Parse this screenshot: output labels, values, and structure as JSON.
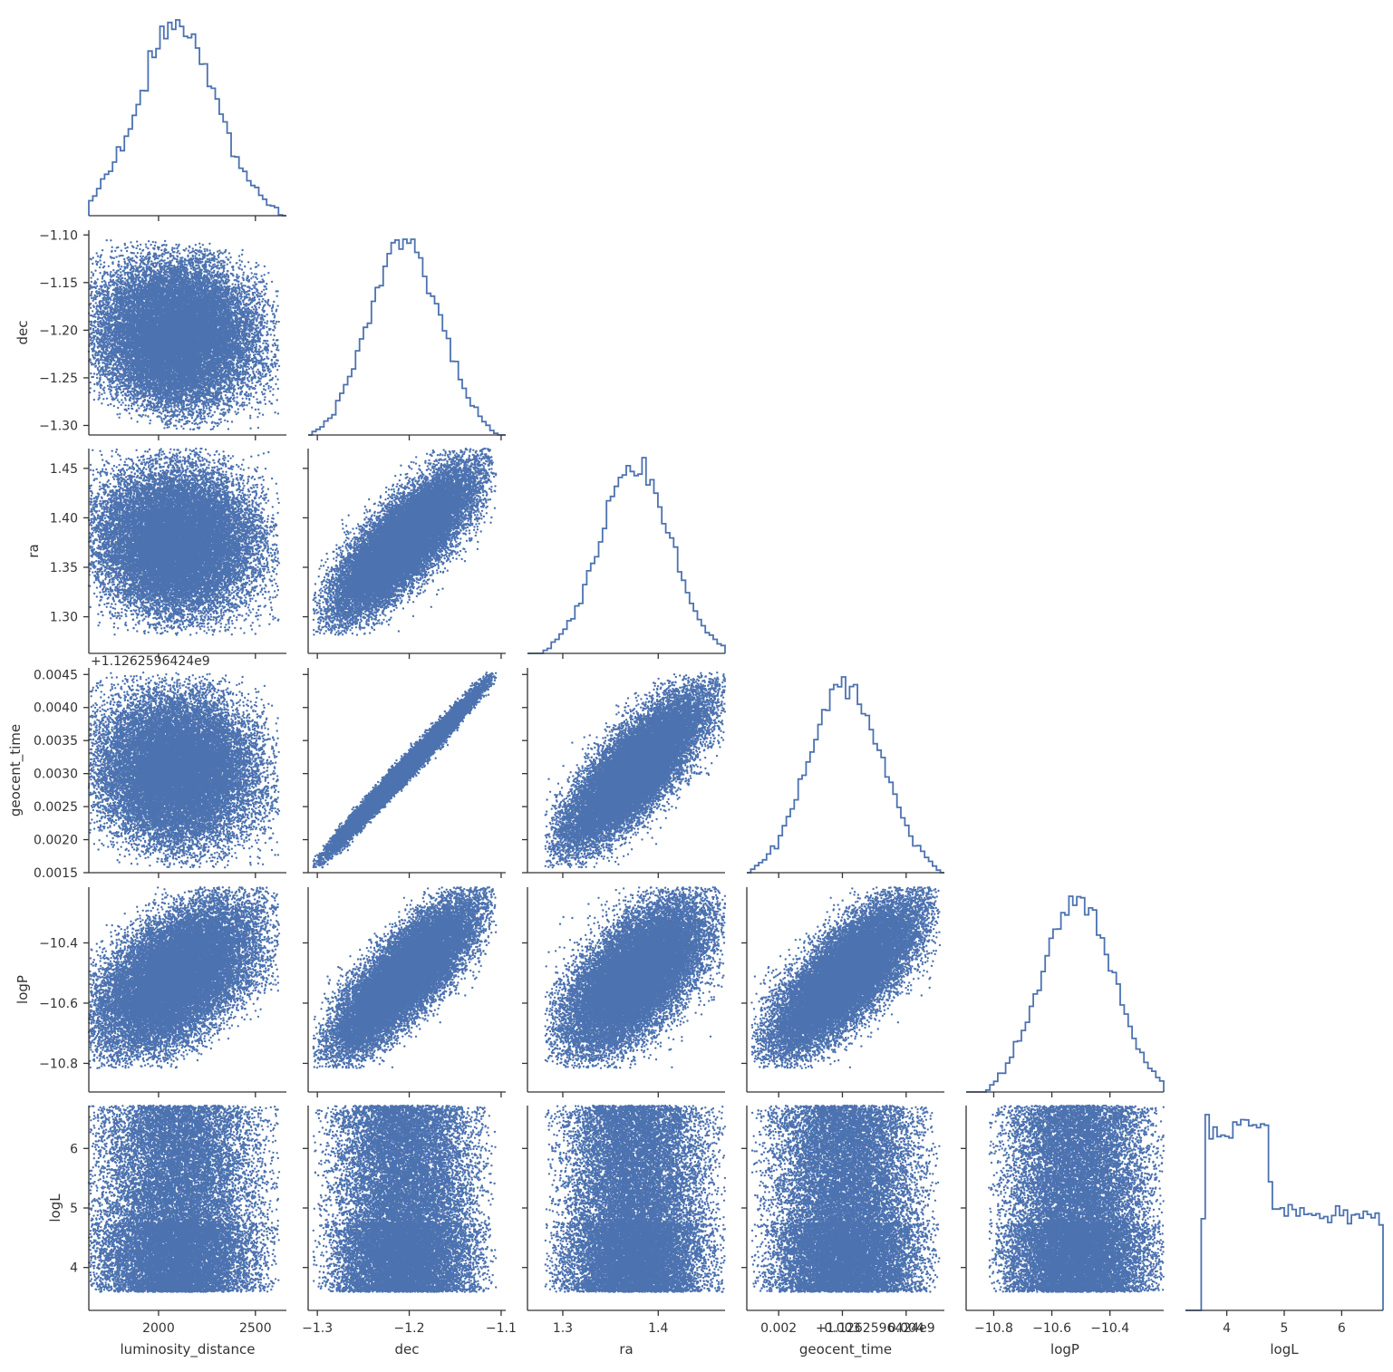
{
  "chart_data": {
    "type": "scatter",
    "subtype": "pairplot-corner",
    "colors": {
      "marks": "#4c72b0",
      "axis": "#333333",
      "text": "#333333",
      "background": "#ffffff"
    },
    "grid": false,
    "legend": "none",
    "variables": [
      {
        "name": "luminosity_distance",
        "label": "luminosity_distance",
        "range": [
          1640,
          2660
        ],
        "ticks": [
          2000,
          2500
        ],
        "tick_labels": [
          "2000",
          "2500"
        ]
      },
      {
        "name": "dec",
        "label": "dec",
        "range": [
          -1.31,
          -1.095
        ],
        "ticks": [
          -1.3,
          -1.25,
          -1.2,
          -1.15,
          -1.1
        ],
        "tick_labels": [
          "−1.30",
          "−1.25",
          "−1.20",
          "−1.15",
          "−1.10"
        ],
        "x_ticks": [
          -1.3,
          -1.2,
          -1.1
        ],
        "x_tick_labels": [
          "−1.3",
          "−1.2",
          "−1.1"
        ]
      },
      {
        "name": "ra",
        "label": "ra",
        "range": [
          1.263,
          1.47
        ],
        "ticks": [
          1.3,
          1.35,
          1.4,
          1.45
        ],
        "tick_labels": [
          "1.30",
          "1.35",
          "1.40",
          "1.45"
        ],
        "x_ticks": [
          1.3,
          1.4
        ],
        "x_tick_labels": [
          "1.3",
          "1.4"
        ]
      },
      {
        "name": "geocent_time",
        "label": "geocent_time",
        "offset_label": "+1.12625964 24e9",
        "offset_text": "+1.1262596424e9",
        "range": [
          0.0015,
          0.0046
        ],
        "ticks": [
          0.0015,
          0.002,
          0.0025,
          0.003,
          0.0035,
          0.004,
          0.0045
        ],
        "tick_labels": [
          "0.0015",
          "0.0020",
          "0.0025",
          "0.0030",
          "0.0035",
          "0.0040",
          "0.0045"
        ],
        "x_ticks": [
          0.002,
          0.003,
          0.004
        ],
        "x_tick_labels": [
          "0.002",
          "0.003",
          "0.004"
        ]
      },
      {
        "name": "logP",
        "label": "logP",
        "range": [
          -10.895,
          -10.215
        ],
        "ticks": [
          -10.8,
          -10.6,
          -10.4
        ],
        "tick_labels": [
          "−10.8",
          "−10.6",
          "−10.4"
        ]
      },
      {
        "name": "logL",
        "label": "logL",
        "range": [
          3.28,
          6.72
        ],
        "ticks": [
          4,
          5,
          6
        ],
        "tick_labels": [
          "4",
          "5",
          "6"
        ]
      }
    ],
    "samples": {
      "n": 20000,
      "distributions": {
        "luminosity_distance": {
          "mean": 2100,
          "sd": 205
        },
        "dec": {
          "mean": -1.205,
          "sd": 0.039
        },
        "ra": {
          "mean": 1.376,
          "sd": 0.037
        },
        "geocent_time": {
          "mean": 0.00305,
          "sd": 0.00058
        },
        "logP": {
          "mean": -10.51,
          "sd": 0.12
        },
        "logL": {
          "mean": 4.75,
          "sd": 0.7
        }
      },
      "correlations": {
        "dec~ra": 0.8,
        "dec~geocent_time": 0.99,
        "ra~geocent_time": 0.8,
        "luminosity_distance~logP": 0.55,
        "dec~logP": 0.85,
        "ra~logP": 0.65,
        "geocent_time~logP": 0.8,
        "luminosity_distance~logL": 0.3,
        "logP~logL": 0.35
      }
    }
  }
}
